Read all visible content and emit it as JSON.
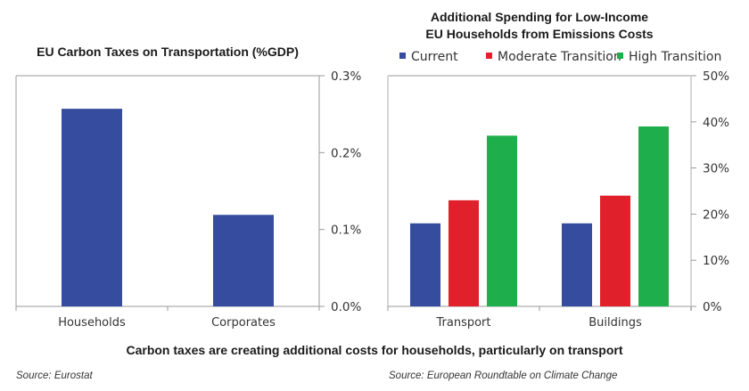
{
  "chart_data": [
    {
      "type": "bar",
      "title": "EU Carbon Taxes on Transportation (%GDP)",
      "categories": [
        "Households",
        "Corporates"
      ],
      "series": [
        {
          "name": "EU Carbon Taxes",
          "color": "#354c9f",
          "values": [
            0.257,
            0.119
          ]
        }
      ],
      "xlabel": "",
      "ylabel": "",
      "ylim": [
        0,
        0.3
      ],
      "yticks": [
        0.0,
        0.1,
        0.2,
        0.3
      ],
      "ytick_labels": [
        "0.0%",
        "0.1%",
        "0.2%",
        "0.3%"
      ],
      "y_axis_side": "right",
      "grid": false,
      "legend": "none",
      "source": "Source: Eurostat"
    },
    {
      "type": "bar",
      "title_lines": [
        "Additional Spending for Low-Income",
        "EU Households from Emissions Costs"
      ],
      "categories": [
        "Transport",
        "Buildings"
      ],
      "series": [
        {
          "name": "Current",
          "color": "#354c9f",
          "values": [
            18,
            18
          ]
        },
        {
          "name": "Moderate Transition",
          "color": "#e0202a",
          "values": [
            23,
            24
          ]
        },
        {
          "name": "High Transition",
          "color": "#1fae4c",
          "values": [
            37,
            39
          ]
        }
      ],
      "xlabel": "",
      "ylabel": "",
      "ylim": [
        0,
        50
      ],
      "yticks": [
        0,
        10,
        20,
        30,
        40,
        50
      ],
      "ytick_labels": [
        "0%",
        "10%",
        "20%",
        "30%",
        "40%",
        "50%"
      ],
      "y_axis_side": "right",
      "grid": false,
      "legend": "top",
      "source": "Source: European Roundtable on Climate Change"
    }
  ],
  "caption": "Carbon taxes are creating additional costs for households, particularly on transport",
  "colors": {
    "axis": "#999999",
    "frame_right": "#d0d0d0"
  }
}
